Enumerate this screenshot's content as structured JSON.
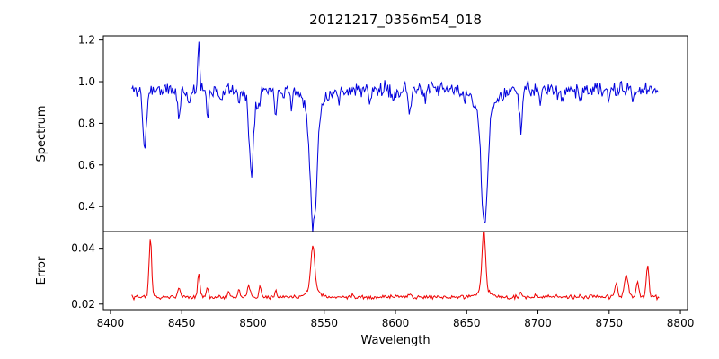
{
  "chart_data": {
    "type": "line",
    "title": "20121217_0356m54_018",
    "xlabel": "Wavelength",
    "xlim": [
      8395,
      8805
    ],
    "x_start": 8415,
    "x_end": 8785,
    "n_points": 520,
    "seed": 11,
    "x_ticks": [
      8400,
      8450,
      8500,
      8550,
      8600,
      8650,
      8700,
      8750,
      8800
    ],
    "x_tick_labels": [
      "8400",
      "8450",
      "8500",
      "8550",
      "8600",
      "8650",
      "8700",
      "8750",
      "8800"
    ],
    "legend": "none",
    "grid": false,
    "panels": [
      {
        "name": "spectrum",
        "ylabel": "Spectrum",
        "color": "#0000dd",
        "ylim": [
          0.28,
          1.22
        ],
        "y_ticks": [
          0.4,
          0.6,
          0.8,
          1.0,
          1.2
        ],
        "y_tick_labels": [
          "0.4",
          "0.6",
          "0.8",
          "1.0",
          "1.2"
        ],
        "baseline": 0.96,
        "noise": 0.03,
        "features": [
          [
            8424.0,
            -0.29,
            1.2
          ],
          [
            8448.0,
            -0.13,
            1.0
          ],
          [
            8455.0,
            -0.07,
            0.8
          ],
          [
            8462.0,
            0.22,
            0.7
          ],
          [
            8468.0,
            -0.11,
            0.9
          ],
          [
            8478.0,
            -0.06,
            0.8
          ],
          [
            8490.0,
            -0.07,
            0.8
          ],
          [
            8498.8,
            -0.39,
            1.6
          ],
          [
            8504.0,
            -0.08,
            0.8
          ],
          [
            8516.0,
            -0.09,
            0.9
          ],
          [
            8527.0,
            -0.06,
            0.8
          ],
          [
            8542.5,
            -0.56,
            2.2
          ],
          [
            8542.5,
            -0.1,
            6.0
          ],
          [
            8560.0,
            -0.05,
            1.0
          ],
          [
            8582.0,
            -0.06,
            0.9
          ],
          [
            8598.0,
            -0.05,
            0.8
          ],
          [
            8610.0,
            -0.1,
            0.9
          ],
          [
            8620.0,
            -0.05,
            0.8
          ],
          [
            8648.0,
            -0.06,
            0.8
          ],
          [
            8662.5,
            -0.56,
            2.2
          ],
          [
            8662.5,
            -0.1,
            6.0
          ],
          [
            8675.0,
            -0.05,
            0.8
          ],
          [
            8688.0,
            -0.17,
            1.1
          ],
          [
            8702.0,
            -0.05,
            0.8
          ],
          [
            8717.0,
            -0.06,
            0.9
          ],
          [
            8730.0,
            -0.05,
            0.8
          ],
          [
            8750.0,
            -0.06,
            0.8
          ],
          [
            8767.0,
            -0.05,
            0.8
          ]
        ]
      },
      {
        "name": "error",
        "ylabel": "Error",
        "color": "#ee0000",
        "ylim": [
          0.018,
          0.046
        ],
        "y_ticks": [
          0.02,
          0.04
        ],
        "y_tick_labels": [
          "0.02",
          "0.04"
        ],
        "baseline": 0.0225,
        "noise": 0.0006,
        "features": [
          [
            8428.0,
            0.021,
            0.9
          ],
          [
            8448.0,
            0.004,
            0.8
          ],
          [
            8462.0,
            0.0085,
            0.8
          ],
          [
            8468.0,
            0.003,
            0.7
          ],
          [
            8483.0,
            0.002,
            0.7
          ],
          [
            8490.0,
            0.003,
            0.7
          ],
          [
            8497.0,
            0.0045,
            0.9
          ],
          [
            8505.0,
            0.004,
            0.8
          ],
          [
            8516.0,
            0.002,
            0.7
          ],
          [
            8542.0,
            0.016,
            1.3
          ],
          [
            8542.0,
            0.003,
            4.0
          ],
          [
            8570.0,
            0.001,
            0.7
          ],
          [
            8610.0,
            0.0015,
            0.7
          ],
          [
            8662.0,
            0.021,
            1.2
          ],
          [
            8662.0,
            0.003,
            4.0
          ],
          [
            8688.0,
            0.002,
            0.8
          ],
          [
            8713.0,
            0.001,
            0.7
          ],
          [
            8755.0,
            0.005,
            1.0
          ],
          [
            8762.0,
            0.0075,
            1.4
          ],
          [
            8770.0,
            0.005,
            0.9
          ],
          [
            8777.0,
            0.011,
            0.9
          ]
        ]
      }
    ]
  }
}
